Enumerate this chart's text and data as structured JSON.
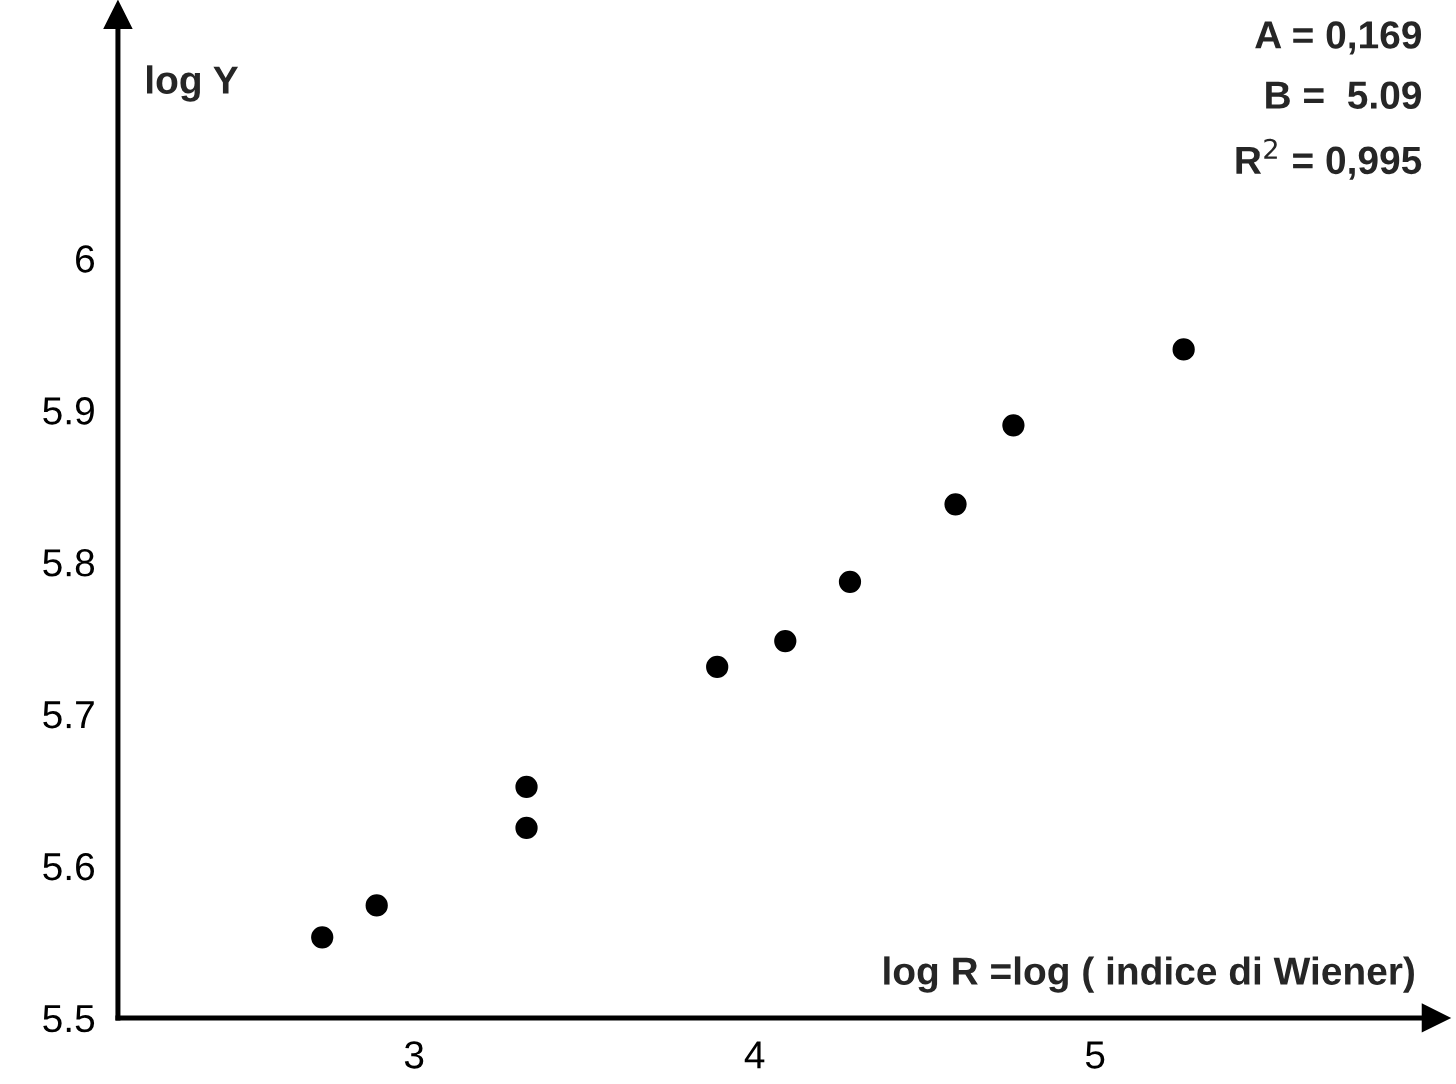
{
  "chart_data": {
    "type": "scatter",
    "xlabel": "log R =log ( indice di Wiener)",
    "ylabel": "log Y",
    "annotations": [
      "A = 0,169",
      "B =  5.09",
      "R$^{2}$ = 0,995"
    ],
    "x": [
      2.73,
      2.89,
      3.33,
      3.33,
      3.89,
      4.09,
      4.28,
      4.59,
      4.76,
      5.26
    ],
    "series": [
      {
        "color": "#000000",
        "values": [
          5.553,
          5.574,
          5.652,
          5.625,
          5.731,
          5.748,
          5.787,
          5.838,
          5.89,
          5.94
        ]
      }
    ],
    "xlim": [
      2.13,
      6.0
    ],
    "ylim": [
      5.5,
      6.16
    ],
    "xticks": [
      3,
      4,
      5
    ],
    "yticks": [
      5.5,
      5.6,
      5.7,
      5.8,
      5.9,
      6
    ],
    "grid": false,
    "legend": false,
    "marker": "circle"
  }
}
